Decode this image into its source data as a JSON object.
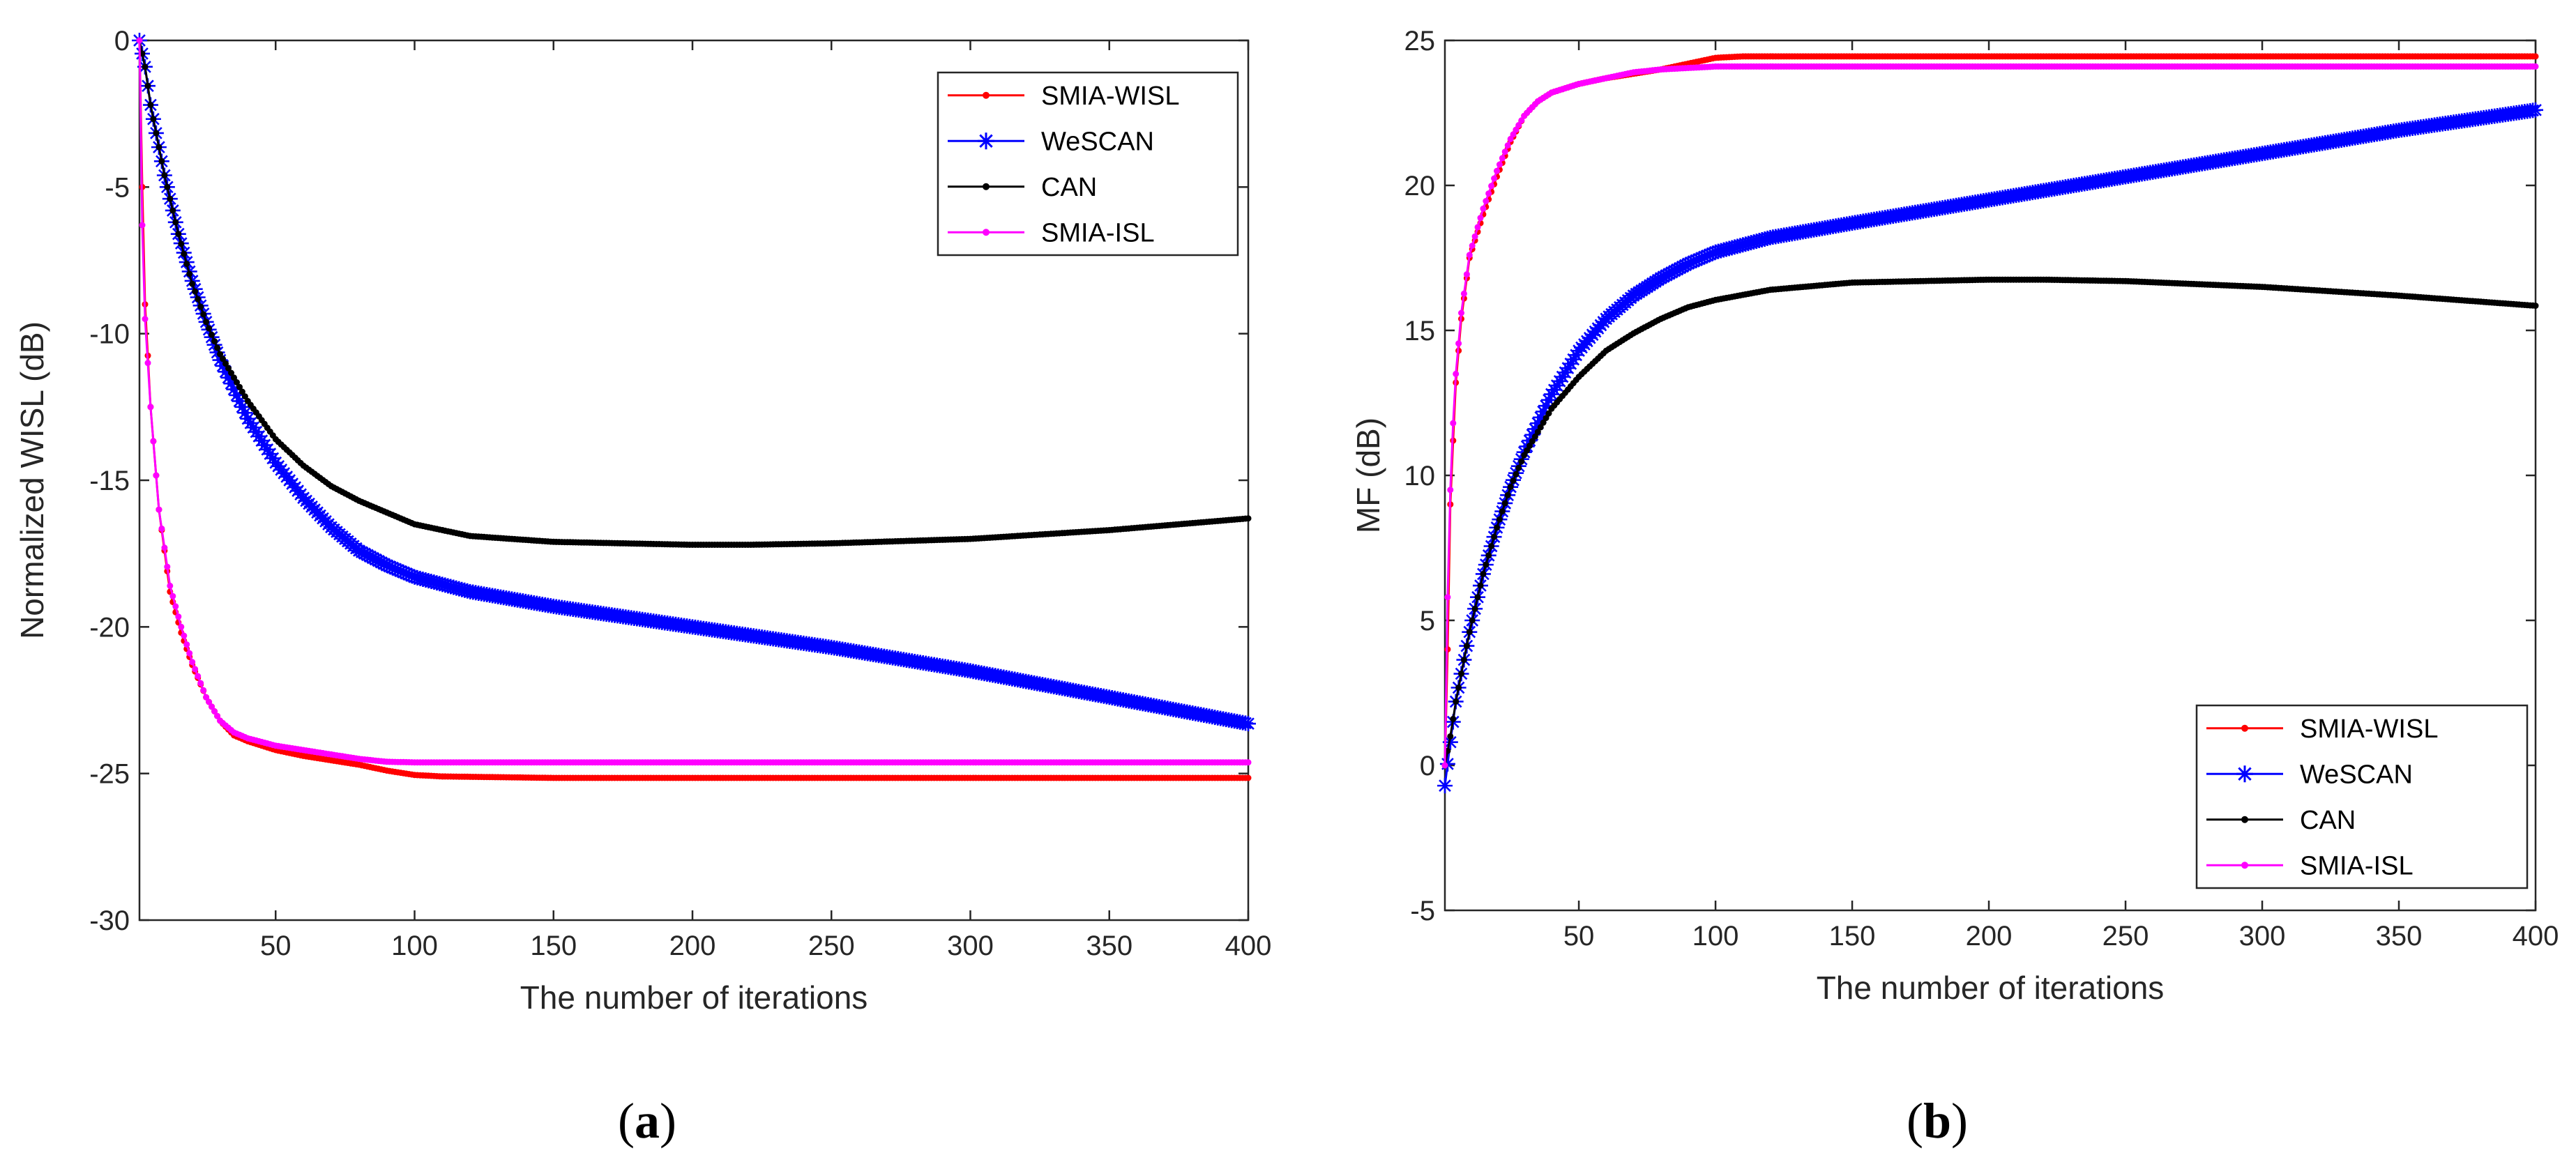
{
  "figure": {
    "panels": [
      {
        "caption_open": "(",
        "caption_letter": "a",
        "caption_close": ")"
      },
      {
        "caption_open": "(",
        "caption_letter": "b",
        "caption_close": ")"
      }
    ]
  },
  "colors": {
    "SMIA-WISL": "#ff0000",
    "WeSCAN": "#0000ff",
    "CAN": "#000000",
    "SMIA-ISL": "#ff00ff"
  },
  "chart_data": [
    {
      "type": "line",
      "title": "",
      "xlabel": "The number of iterations",
      "ylabel": "Normalized WISL (dB)",
      "xlim": [
        1,
        400
      ],
      "ylim": [
        -30,
        0
      ],
      "xticks": [
        50,
        100,
        150,
        200,
        250,
        300,
        350,
        400
      ],
      "yticks": [
        0,
        -5,
        -10,
        -15,
        -20,
        -25,
        -30
      ],
      "legend_position": "top-right",
      "legend": [
        "SMIA-WISL",
        "WeSCAN",
        "CAN",
        "SMIA-ISL"
      ],
      "series": [
        {
          "name": "SMIA-WISL",
          "marker": "dot",
          "x": [
            1,
            2,
            3,
            5,
            8,
            12,
            16,
            20,
            25,
            30,
            35,
            40,
            50,
            60,
            70,
            80,
            90,
            100,
            110,
            150,
            200,
            250,
            300,
            350,
            400
          ],
          "y": [
            0,
            -5,
            -9,
            -12.5,
            -16,
            -18.8,
            -20.2,
            -21.3,
            -22.4,
            -23.2,
            -23.7,
            -23.9,
            -24.2,
            -24.4,
            -24.55,
            -24.7,
            -24.9,
            -25.05,
            -25.1,
            -25.15,
            -25.15,
            -25.15,
            -25.15,
            -25.15,
            -25.15
          ]
        },
        {
          "name": "WeSCAN",
          "marker": "star",
          "x": [
            1,
            3,
            5,
            10,
            15,
            20,
            25,
            30,
            40,
            50,
            60,
            70,
            80,
            90,
            100,
            120,
            150,
            200,
            250,
            300,
            350,
            400
          ],
          "y": [
            0,
            -0.9,
            -2.2,
            -4.6,
            -6.6,
            -8.2,
            -9.6,
            -10.9,
            -12.9,
            -14.4,
            -15.6,
            -16.6,
            -17.4,
            -17.9,
            -18.3,
            -18.8,
            -19.3,
            -20.0,
            -20.7,
            -21.5,
            -22.4,
            -23.3
          ]
        },
        {
          "name": "CAN",
          "marker": "dot",
          "x": [
            1,
            3,
            5,
            10,
            15,
            20,
            25,
            30,
            40,
            50,
            60,
            70,
            80,
            90,
            100,
            120,
            150,
            200,
            220,
            250,
            300,
            350,
            400
          ],
          "y": [
            0,
            -0.9,
            -2.2,
            -4.6,
            -6.6,
            -8.3,
            -9.6,
            -10.7,
            -12.3,
            -13.6,
            -14.5,
            -15.2,
            -15.7,
            -16.1,
            -16.5,
            -16.9,
            -17.1,
            -17.2,
            -17.2,
            -17.15,
            -17.0,
            -16.7,
            -16.3
          ]
        },
        {
          "name": "SMIA-ISL",
          "marker": "dot",
          "x": [
            1,
            2,
            3,
            5,
            8,
            12,
            16,
            20,
            25,
            30,
            35,
            40,
            50,
            60,
            70,
            80,
            90,
            100,
            150,
            200,
            250,
            300,
            350,
            400
          ],
          "y": [
            0,
            -6.3,
            -9.5,
            -12.5,
            -16,
            -18.6,
            -20.0,
            -21.2,
            -22.4,
            -23.2,
            -23.6,
            -23.8,
            -24.05,
            -24.2,
            -24.35,
            -24.5,
            -24.6,
            -24.62,
            -24.62,
            -24.62,
            -24.62,
            -24.62,
            -24.62,
            -24.62
          ]
        }
      ]
    },
    {
      "type": "line",
      "title": "",
      "xlabel": "The number of iterations",
      "ylabel": "MF (dB)",
      "xlim": [
        1,
        400
      ],
      "ylim": [
        -5,
        25
      ],
      "xticks": [
        50,
        100,
        150,
        200,
        250,
        300,
        350,
        400
      ],
      "yticks": [
        25,
        20,
        15,
        10,
        5,
        0,
        -5
      ],
      "legend_position": "bottom-right",
      "legend": [
        "SMIA-WISL",
        "WeSCAN",
        "CAN",
        "SMIA-ISL"
      ],
      "series": [
        {
          "name": "SMIA-WISL",
          "marker": "dot",
          "x": [
            1,
            2,
            3,
            4,
            5,
            7,
            10,
            15,
            20,
            25,
            30,
            35,
            40,
            50,
            60,
            70,
            80,
            90,
            100,
            110,
            150,
            200,
            250,
            300,
            350,
            400
          ],
          "y": [
            0,
            4,
            9.0,
            11.2,
            13.2,
            15.4,
            17.5,
            19.0,
            20.3,
            21.5,
            22.4,
            22.9,
            23.2,
            23.5,
            23.7,
            23.85,
            24.0,
            24.2,
            24.4,
            24.45,
            24.45,
            24.45,
            24.45,
            24.45,
            24.45,
            24.45
          ]
        },
        {
          "name": "WeSCAN",
          "marker": "star",
          "x": [
            1,
            3,
            5,
            10,
            15,
            20,
            25,
            30,
            40,
            50,
            60,
            70,
            80,
            90,
            100,
            120,
            150,
            200,
            250,
            300,
            350,
            400
          ],
          "y": [
            -0.7,
            0.8,
            2.2,
            4.6,
            6.6,
            8.2,
            9.6,
            10.8,
            12.8,
            14.3,
            15.4,
            16.2,
            16.8,
            17.3,
            17.7,
            18.2,
            18.7,
            19.5,
            20.3,
            21.1,
            21.9,
            22.6
          ]
        },
        {
          "name": "CAN",
          "marker": "dot",
          "x": [
            1,
            3,
            5,
            10,
            15,
            20,
            25,
            30,
            40,
            50,
            60,
            70,
            80,
            90,
            100,
            120,
            150,
            200,
            220,
            250,
            300,
            350,
            400
          ],
          "y": [
            0,
            1.0,
            2.2,
            4.6,
            6.6,
            8.2,
            9.6,
            10.7,
            12.3,
            13.4,
            14.3,
            14.9,
            15.4,
            15.8,
            16.05,
            16.4,
            16.65,
            16.75,
            16.75,
            16.7,
            16.5,
            16.2,
            15.85
          ]
        },
        {
          "name": "SMIA-ISL",
          "marker": "dot",
          "x": [
            1,
            2,
            3,
            4,
            5,
            7,
            10,
            15,
            20,
            25,
            30,
            35,
            40,
            50,
            60,
            70,
            80,
            90,
            100,
            150,
            200,
            250,
            300,
            350,
            400
          ],
          "y": [
            0,
            5.8,
            9.5,
            11.8,
            13.5,
            15.6,
            17.6,
            19.2,
            20.5,
            21.6,
            22.4,
            22.9,
            23.2,
            23.5,
            23.7,
            23.9,
            24.0,
            24.05,
            24.1,
            24.1,
            24.1,
            24.1,
            24.1,
            24.1,
            24.1
          ]
        }
      ]
    }
  ]
}
